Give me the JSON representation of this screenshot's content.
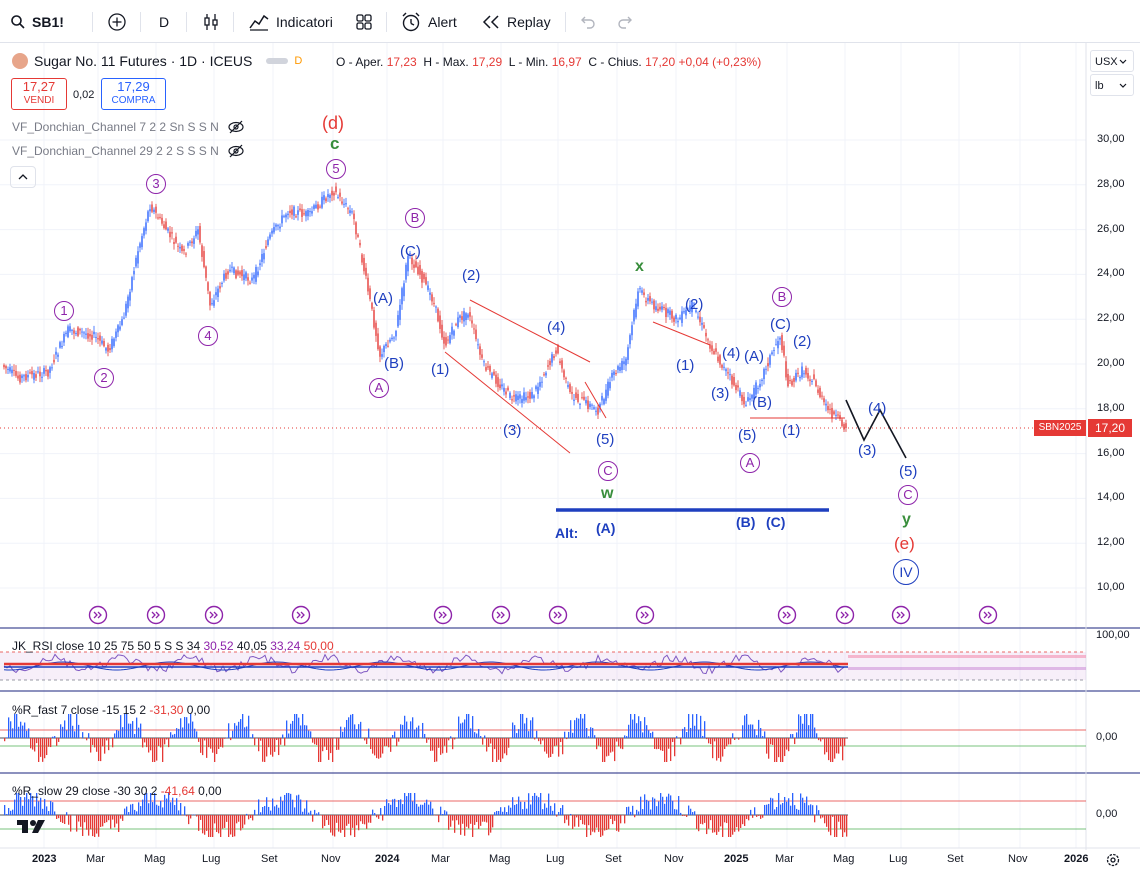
{
  "toolbar": {
    "symbol": "SB1!",
    "interval": "D",
    "indicators_label": "Indicatori",
    "alert_label": "Alert",
    "replay_label": "Replay"
  },
  "legend": {
    "title": "Sugar No. 11 Futures · 1D · ICEUS",
    "badge": "D",
    "open_label": "O - Aper.",
    "open": "17,23",
    "high_label": "H - Max.",
    "high": "17,29",
    "low_label": "L - Min.",
    "low": "16,97",
    "close_label": "C - Chius.",
    "close": "17,20",
    "change": "+0,04 (+0,23%)"
  },
  "trade": {
    "sell_price": "17,27",
    "sell_label": "VENDI",
    "spread": "0,02",
    "buy_price": "17,29",
    "buy_label": "COMPRA"
  },
  "indicators": [
    {
      "label": "VF_Donchian_Channel 7 2 2 Sn S S N"
    },
    {
      "label": "VF_Donchian_Channel 29 2 2 S S S N"
    }
  ],
  "price_axis": {
    "currency": "USX",
    "unit": "lb",
    "ticks": [
      "30,00",
      "28,00",
      "26,00",
      "24,00",
      "22,00",
      "20,00",
      "18,00",
      "16,00",
      "14,00",
      "12,00",
      "10,00"
    ],
    "symbol_tag": "SBN2025",
    "last_price": "17,20"
  },
  "time_axis": [
    "2023",
    "Mar",
    "Mag",
    "Lug",
    "Set",
    "Nov",
    "2024",
    "Mar",
    "Mag",
    "Lug",
    "Set",
    "Nov",
    "2025",
    "Mar",
    "Mag",
    "Lug",
    "Set",
    "Nov",
    "2026"
  ],
  "waves": {
    "w_d": "(d)",
    "w_c": "c",
    "w_5top": "5",
    "w_3": "3",
    "w_1": "1",
    "w_2": "2",
    "w_4": "4",
    "w_B": "B",
    "w_C1": "(C)",
    "w_A1": "(A)",
    "w_B1": "(B)",
    "w_Acirc": "A",
    "w_2b": "(2)",
    "w_1b": "(1)",
    "w_4b": "(4)",
    "w_3b": "(3)",
    "w_5b": "(5)",
    "w_Ccirc": "C",
    "w_w": "w",
    "alt": "Alt:",
    "alt_A": "(A)",
    "alt_B": "(B)",
    "alt_C": "(C)",
    "w_x": "x",
    "w_2c": "(2)",
    "w_1c": "(1)",
    "w_4c": "(4)",
    "w_3c": "(3)",
    "w_Ac": "(A)",
    "w_Bc": "(B)",
    "w_5c": "(5)",
    "w_Acirc2": "A",
    "w_Bcirc2": "B",
    "w_Cc": "(C)",
    "w_2d": "(2)",
    "w_1d": "(1)",
    "w_4e": "(4)",
    "w_3e": "(3)",
    "w_5e": "(5)",
    "w_Ccirc2": "C",
    "w_y": "y",
    "w_e": "(e)",
    "w_IV": "IV"
  },
  "rsi": {
    "label": "JK_RSI close 10 25 75 50 5 S S 34",
    "v1": "30,52",
    "v2": "40,05",
    "v3": "33,24",
    "v4": "50,00",
    "axis": "100,00"
  },
  "wr_fast": {
    "label": "%R_fast 7 close -15 15 2",
    "v1": "-31,30",
    "v2": "0,00",
    "axis": "0,00"
  },
  "wr_slow": {
    "label": "%R_slow 29 close -30 30 2",
    "v1": "-41,64",
    "v2": "0,00",
    "axis": "0,00"
  },
  "colors": {
    "up": "#2962ff",
    "down": "#e53935",
    "wave_purple": "#8e24aa",
    "wave_blue": "#1e3fbf",
    "wave_green": "#388e3c",
    "wave_red": "#e53935"
  }
}
